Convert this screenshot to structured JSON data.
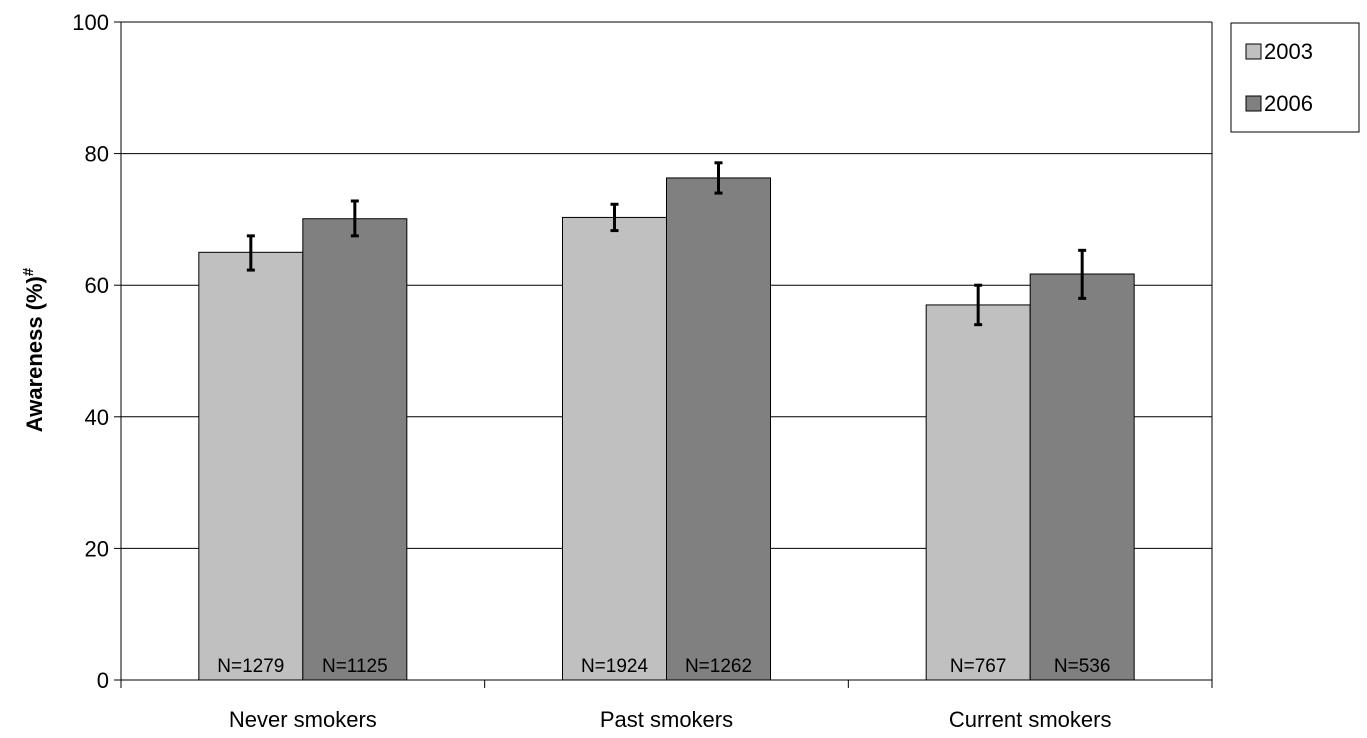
{
  "chart_data": {
    "type": "bar",
    "categories": [
      "Never smokers",
      "Past smokers",
      "Current smokers"
    ],
    "series": [
      {
        "name": "2003",
        "color": "#c0c0c0",
        "values": [
          65,
          70.3,
          57
        ],
        "error_low": [
          62.3,
          68.3,
          54
        ],
        "error_high": [
          67.5,
          72.3,
          60
        ],
        "n_labels": [
          "N=1279",
          "N=1924",
          "N=767"
        ]
      },
      {
        "name": "2006",
        "color": "#808080",
        "values": [
          70.1,
          76.3,
          61.7
        ],
        "error_low": [
          67.5,
          74,
          58
        ],
        "error_high": [
          72.8,
          78.6,
          65.3
        ],
        "n_labels": [
          "N=1125",
          "N=1262",
          "N=536"
        ]
      }
    ],
    "ylabel": "Awareness (%)",
    "ylabel_superscript": "#",
    "ylim": [
      0,
      100
    ],
    "yticks": [
      "0",
      "20",
      "40",
      "60",
      "80",
      "100"
    ],
    "grid": true,
    "legend_position": "top-right"
  }
}
